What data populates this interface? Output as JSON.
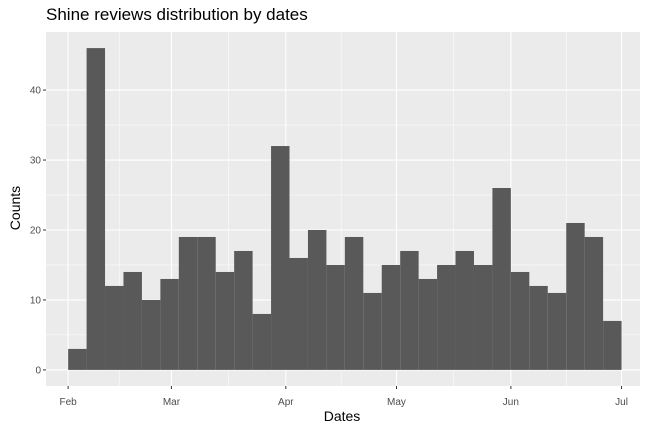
{
  "chart_data": {
    "type": "bar",
    "title": "Shine reviews distribution by dates",
    "xlabel": "Dates",
    "ylabel": "Counts",
    "x_tick_labels": [
      "Feb",
      "Mar",
      "Apr",
      "May",
      "Jun",
      "Jul"
    ],
    "x_tick_dates": [
      "2017-02-01",
      "2017-03-01",
      "2017-04-01",
      "2017-05-01",
      "2017-06-01",
      "2017-07-01"
    ],
    "y_ticks": [
      0,
      10,
      20,
      30,
      40
    ],
    "ylim": [
      -2.3,
      48.3
    ],
    "xlim": [
      "2017-01-26",
      "2017-07-06"
    ],
    "grid": true,
    "bin_width_days": 5,
    "bin_starts": [
      "2017-02-01",
      "2017-02-06",
      "2017-02-11",
      "2017-02-16",
      "2017-02-21",
      "2017-02-26",
      "2017-03-03",
      "2017-03-08",
      "2017-03-13",
      "2017-03-18",
      "2017-03-23",
      "2017-03-28",
      "2017-04-02",
      "2017-04-07",
      "2017-04-12",
      "2017-04-17",
      "2017-04-22",
      "2017-04-27",
      "2017-05-02",
      "2017-05-07",
      "2017-05-12",
      "2017-05-17",
      "2017-05-22",
      "2017-05-27",
      "2017-06-01",
      "2017-06-06",
      "2017-06-11",
      "2017-06-16",
      "2017-06-21",
      "2017-06-26"
    ],
    "values": [
      3,
      46,
      12,
      14,
      10,
      13,
      19,
      19,
      14,
      17,
      8,
      32,
      16,
      20,
      15,
      19,
      11,
      15,
      17,
      13,
      15,
      17,
      15,
      26,
      14,
      12,
      11,
      21,
      19,
      7
    ],
    "bar_color": "#595959",
    "panel_background": "#ebebeb",
    "grid_color": "#ffffff"
  }
}
